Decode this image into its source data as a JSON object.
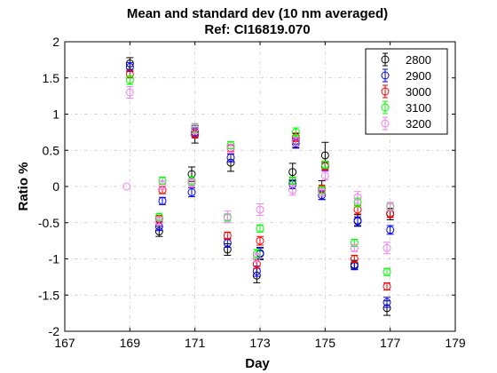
{
  "chart_data": {
    "type": "scatter",
    "title": "Mean and standard dev (10 nm averaged)",
    "subtitle": "Ref: CI16819.070",
    "xlabel": "Day",
    "ylabel": "Ratio %",
    "xlim": [
      167,
      179
    ],
    "ylim": [
      -2,
      2
    ],
    "xticks": [
      167,
      169,
      171,
      173,
      175,
      177,
      179
    ],
    "yticks": [
      -2,
      -1.5,
      -1,
      -0.5,
      0,
      0.5,
      1,
      1.5,
      2
    ],
    "grid": true,
    "legend_position": "top-right",
    "series": [
      {
        "name": "2800",
        "color": "#000000",
        "points": [
          {
            "x": 169.0,
            "y": 1.7,
            "err": 0.08
          },
          {
            "x": 169.9,
            "y": -0.62,
            "err": 0.07
          },
          {
            "x": 170.9,
            "y": 0.17,
            "err": 0.1
          },
          {
            "x": 171.0,
            "y": 0.72,
            "err": 0.12
          },
          {
            "x": 172.0,
            "y": -0.87,
            "err": 0.08
          },
          {
            "x": 172.1,
            "y": 0.33,
            "err": 0.12
          },
          {
            "x": 172.9,
            "y": -1.23,
            "err": 0.1
          },
          {
            "x": 173.0,
            "y": -0.93,
            "err": 0.08
          },
          {
            "x": 174.0,
            "y": 0.2,
            "err": 0.12
          },
          {
            "x": 174.1,
            "y": 0.63,
            "err": 0.1
          },
          {
            "x": 174.9,
            "y": -0.05,
            "err": 0.13
          },
          {
            "x": 175.0,
            "y": 0.43,
            "err": 0.18
          },
          {
            "x": 175.9,
            "y": -1.08,
            "err": 0.06
          },
          {
            "x": 176.0,
            "y": -0.47,
            "err": 0.08
          },
          {
            "x": 176.9,
            "y": -1.68,
            "err": 0.1
          },
          {
            "x": 177.0,
            "y": -0.38,
            "err": 0.08
          }
        ]
      },
      {
        "name": "2900",
        "color": "#0000ff",
        "points": [
          {
            "x": 169.0,
            "y": 1.65,
            "err": 0.06
          },
          {
            "x": 169.9,
            "y": -0.55,
            "err": 0.06
          },
          {
            "x": 170.0,
            "y": -0.2,
            "err": 0.05
          },
          {
            "x": 170.9,
            "y": -0.08,
            "err": 0.06
          },
          {
            "x": 171.0,
            "y": 0.75,
            "err": 0.06
          },
          {
            "x": 172.0,
            "y": -0.78,
            "err": 0.06
          },
          {
            "x": 172.1,
            "y": 0.4,
            "err": 0.06
          },
          {
            "x": 172.9,
            "y": -1.17,
            "err": 0.07
          },
          {
            "x": 173.0,
            "y": -0.92,
            "err": 0.08
          },
          {
            "x": 174.0,
            "y": 0.03,
            "err": 0.06
          },
          {
            "x": 174.1,
            "y": 0.6,
            "err": 0.06
          },
          {
            "x": 174.9,
            "y": -0.12,
            "err": 0.06
          },
          {
            "x": 175.0,
            "y": 0.28,
            "err": 0.06
          },
          {
            "x": 175.9,
            "y": -1.1,
            "err": 0.05
          },
          {
            "x": 176.0,
            "y": -0.48,
            "err": 0.06
          },
          {
            "x": 176.9,
            "y": -1.6,
            "err": 0.07
          },
          {
            "x": 177.0,
            "y": -0.6,
            "err": 0.06
          }
        ]
      },
      {
        "name": "3000",
        "color": "#ff0000",
        "points": [
          {
            "x": 169.0,
            "y": 1.55,
            "err": 0.05
          },
          {
            "x": 169.9,
            "y": -0.45,
            "err": 0.05
          },
          {
            "x": 170.0,
            "y": -0.05,
            "err": 0.05
          },
          {
            "x": 170.9,
            "y": 0.05,
            "err": 0.06
          },
          {
            "x": 171.0,
            "y": 0.73,
            "err": 0.06
          },
          {
            "x": 172.0,
            "y": -0.68,
            "err": 0.05
          },
          {
            "x": 172.1,
            "y": 0.53,
            "err": 0.05
          },
          {
            "x": 172.9,
            "y": -1.07,
            "err": 0.06
          },
          {
            "x": 173.0,
            "y": -0.75,
            "err": 0.06
          },
          {
            "x": 174.0,
            "y": 0.08,
            "err": 0.05
          },
          {
            "x": 174.1,
            "y": 0.68,
            "err": 0.06
          },
          {
            "x": 174.9,
            "y": -0.03,
            "err": 0.05
          },
          {
            "x": 175.0,
            "y": 0.28,
            "err": 0.05
          },
          {
            "x": 175.9,
            "y": -1.0,
            "err": 0.05
          },
          {
            "x": 176.0,
            "y": -0.32,
            "err": 0.06
          },
          {
            "x": 176.9,
            "y": -1.38,
            "err": 0.05
          },
          {
            "x": 177.0,
            "y": -0.37,
            "err": 0.06
          }
        ]
      },
      {
        "name": "3100",
        "color": "#00ff00",
        "points": [
          {
            "x": 169.0,
            "y": 1.47,
            "err": 0.06
          },
          {
            "x": 169.9,
            "y": -0.42,
            "err": 0.05
          },
          {
            "x": 170.0,
            "y": 0.08,
            "err": 0.05
          },
          {
            "x": 170.9,
            "y": 0.08,
            "err": 0.06
          },
          {
            "x": 171.0,
            "y": 0.8,
            "err": 0.06
          },
          {
            "x": 172.0,
            "y": -0.43,
            "err": 0.05
          },
          {
            "x": 172.1,
            "y": 0.57,
            "err": 0.05
          },
          {
            "x": 172.9,
            "y": -0.93,
            "err": 0.06
          },
          {
            "x": 173.0,
            "y": -0.58,
            "err": 0.05
          },
          {
            "x": 174.0,
            "y": 0.08,
            "err": 0.05
          },
          {
            "x": 174.1,
            "y": 0.75,
            "err": 0.06
          },
          {
            "x": 174.9,
            "y": -0.05,
            "err": 0.05
          },
          {
            "x": 175.0,
            "y": 0.3,
            "err": 0.05
          },
          {
            "x": 175.9,
            "y": -0.78,
            "err": 0.05
          },
          {
            "x": 176.0,
            "y": -0.22,
            "err": 0.06
          },
          {
            "x": 176.9,
            "y": -1.18,
            "err": 0.05
          },
          {
            "x": 177.0,
            "y": -0.27,
            "err": 0.05
          }
        ]
      },
      {
        "name": "3200",
        "color": "#ee82ee",
        "points": [
          {
            "x": 168.9,
            "y": 0.0,
            "err": 0.0
          },
          {
            "x": 169.0,
            "y": 1.3,
            "err": 0.08
          },
          {
            "x": 169.9,
            "y": -0.48,
            "err": 0.06
          },
          {
            "x": 170.0,
            "y": 0.02,
            "err": 0.06
          },
          {
            "x": 170.9,
            "y": 0.05,
            "err": 0.06
          },
          {
            "x": 171.0,
            "y": 0.8,
            "err": 0.07
          },
          {
            "x": 172.0,
            "y": -0.42,
            "err": 0.08
          },
          {
            "x": 172.1,
            "y": 0.52,
            "err": 0.06
          },
          {
            "x": 172.9,
            "y": -0.98,
            "err": 0.06
          },
          {
            "x": 173.0,
            "y": -0.32,
            "err": 0.08
          },
          {
            "x": 174.0,
            "y": -0.05,
            "err": 0.07
          },
          {
            "x": 174.1,
            "y": 0.62,
            "err": 0.06
          },
          {
            "x": 174.9,
            "y": -0.08,
            "err": 0.05
          },
          {
            "x": 175.0,
            "y": 0.15,
            "err": 0.06
          },
          {
            "x": 175.9,
            "y": -0.85,
            "err": 0.05
          },
          {
            "x": 176.0,
            "y": -0.15,
            "err": 0.08
          },
          {
            "x": 176.9,
            "y": -0.85,
            "err": 0.08
          },
          {
            "x": 177.0,
            "y": -0.28,
            "err": 0.06
          }
        ]
      }
    ]
  }
}
